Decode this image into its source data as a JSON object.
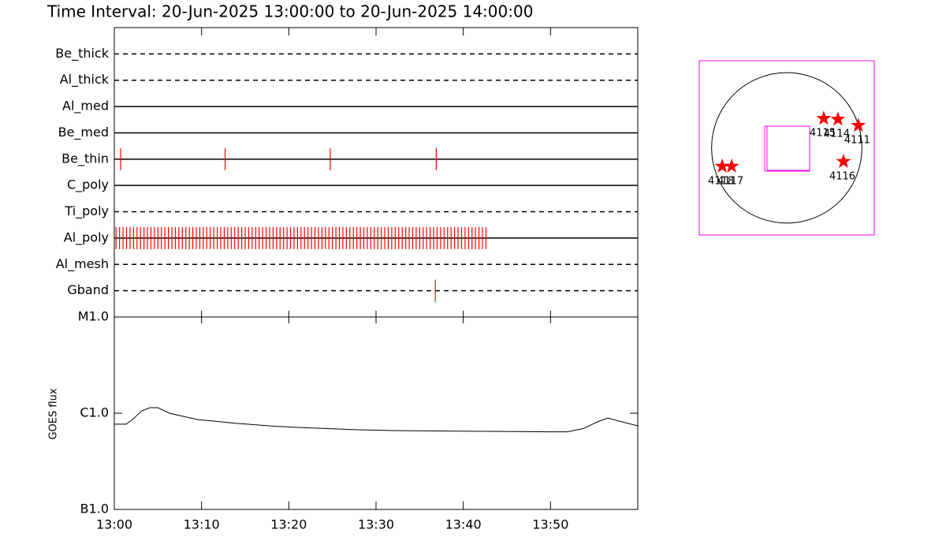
{
  "title": "Time Interval: 20-Jun-2025 13:00:00 to 20-Jun-2025 14:00:00",
  "chart_data": [
    {
      "type": "event",
      "color": "#ff0000",
      "xlim": [
        0,
        60
      ],
      "categories": [
        "Be_thick",
        "Al_thick",
        "Al_med",
        "Be_med",
        "Be_thin",
        "C_poly",
        "Ti_poly",
        "Al_poly",
        "Al_mesh",
        "Gband"
      ],
      "styles": [
        "dashed",
        "dashed",
        "solid",
        "solid",
        "solid",
        "solid",
        "dashed",
        "solid",
        "dashed",
        "dashed"
      ],
      "events": [
        [],
        [],
        [],
        [],
        [
          0.72,
          12.7,
          24.75,
          36.9
        ],
        [],
        [],
        [
          0.2,
          0.6,
          1,
          1.4,
          1.8,
          2.2,
          2.6,
          3,
          3.4,
          3.8,
          4.2,
          4.6,
          5,
          5.4,
          5.8,
          6.2,
          6.6,
          7,
          7.4,
          7.8,
          8.2,
          8.6,
          9,
          9.4,
          9.8,
          10.2,
          10.6,
          11,
          11.4,
          11.8,
          12.2,
          12.6,
          13,
          13.4,
          13.8,
          14.2,
          14.6,
          15,
          15.4,
          15.8,
          16.2,
          16.6,
          17,
          17.4,
          17.8,
          18.2,
          18.6,
          19,
          19.4,
          19.8,
          20.2,
          20.6,
          21,
          21.4,
          21.8,
          22.2,
          22.6,
          23,
          23.4,
          23.8,
          24.2,
          24.6,
          25,
          25.4,
          25.8,
          26.2,
          26.6,
          27,
          27.4,
          27.8,
          28.2,
          28.6,
          29,
          29.4,
          29.8,
          30.2,
          30.6,
          31,
          31.4,
          31.8,
          32.2,
          32.6,
          33,
          33.4,
          33.8,
          34.2,
          34.6,
          35,
          35.4,
          35.8,
          36.2,
          36.6,
          37,
          37.4,
          37.8,
          38.2,
          38.6,
          39,
          39.4,
          39.8,
          40.2,
          40.6,
          41,
          41.4,
          41.8,
          42.2,
          42.6
        ],
        [],
        [
          36.8
        ]
      ]
    },
    {
      "type": "line",
      "ylabel": "GOES flux",
      "color": "#000000",
      "log_y": true,
      "x": [
        0,
        1.35,
        2.08,
        3.16,
        4.1,
        5,
        6.3,
        9.5,
        14,
        18.5,
        23,
        27.6,
        32,
        41,
        50.1,
        51.9,
        53.7,
        55.6,
        56.6,
        57.8,
        60
      ],
      "values": [
        7.7e-07,
        7.7e-07,
        8.6e-07,
        1.06e-06,
        1.14e-06,
        1.14e-06,
        1e-06,
        8.6e-07,
        7.84e-07,
        7.3e-07,
        7e-07,
        6.75e-07,
        6.6e-07,
        6.5e-07,
        6.4e-07,
        6.4e-07,
        6.9e-07,
        8.3e-07,
        8.9e-07,
        8.3e-07,
        7.4e-07
      ],
      "xlim": [
        0,
        60
      ],
      "xticks": [
        {
          "value": 0,
          "label": "13:00"
        },
        {
          "value": 10,
          "label": "13:10"
        },
        {
          "value": 20,
          "label": "13:20"
        },
        {
          "value": 30,
          "label": "13:30"
        },
        {
          "value": 40,
          "label": "13:40"
        },
        {
          "value": 50,
          "label": "13:50"
        }
      ],
      "ylim": [
        1e-07,
        1e-05
      ],
      "yticks": [
        {
          "value": 1e-07,
          "label": "B1.0"
        },
        {
          "value": 1e-06,
          "label": "C1.0"
        },
        {
          "value": 1e-05,
          "label": "M1.0"
        }
      ]
    },
    {
      "type": "scatter",
      "color": "#ff0000",
      "frame_color": "#ff00ff",
      "xlim": [
        -1100,
        1100
      ],
      "ylim": [
        -1100,
        1100
      ],
      "radius": 945,
      "x": [
        465,
        643,
        900,
        713,
        -812,
        -693
      ],
      "y": [
        371,
        361,
        282,
        -173,
        -233,
        -233
      ],
      "labels": [
        "4115",
        "4114",
        "4111",
        "4116",
        "4118",
        "4117"
      ]
    }
  ]
}
